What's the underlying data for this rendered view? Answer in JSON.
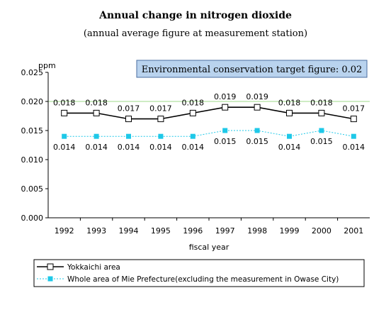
{
  "chart_data": {
    "type": "line",
    "title": "Annual change in nitrogen dioxide",
    "subtitle": "(annual average figure at measurement station)",
    "xlabel": "fiscal year",
    "ylabel": "ppm",
    "categories": [
      "1992",
      "1993",
      "1994",
      "1995",
      "1996",
      "1997",
      "1998",
      "1999",
      "2000",
      "2001"
    ],
    "ylim": [
      0.0,
      0.025
    ],
    "yticks": [
      "0.000",
      "0.005",
      "0.010",
      "0.015",
      "0.020",
      "0.025"
    ],
    "series": [
      {
        "name": "Yokkaichi area",
        "values": [
          0.018,
          0.018,
          0.017,
          0.017,
          0.018,
          0.019,
          0.019,
          0.018,
          0.018,
          0.017
        ],
        "labels": [
          "0.018",
          "0.018",
          "0.017",
          "0.017",
          "0.018",
          "0.019",
          "0.019",
          "0.018",
          "0.018",
          "0.017"
        ],
        "color": "#000000",
        "marker": "hollow-square",
        "line": "solid"
      },
      {
        "name": "Whole area of Mie Prefecture(excluding the measurement in Owase City)",
        "values": [
          0.014,
          0.014,
          0.014,
          0.014,
          0.014,
          0.015,
          0.015,
          0.014,
          0.015,
          0.014
        ],
        "labels": [
          "0.014",
          "0.014",
          "0.014",
          "0.014",
          "0.014",
          "0.015",
          "0.015",
          "0.014",
          "0.015",
          "0.014"
        ],
        "color": "#1ec8e8",
        "marker": "filled-square",
        "line": "dotted"
      }
    ],
    "target_line": {
      "value": 0.02,
      "color": "#9ed88a"
    },
    "annotation": "Environmental conservation target figure: 0.02",
    "grid": false,
    "legend_position": "bottom"
  }
}
